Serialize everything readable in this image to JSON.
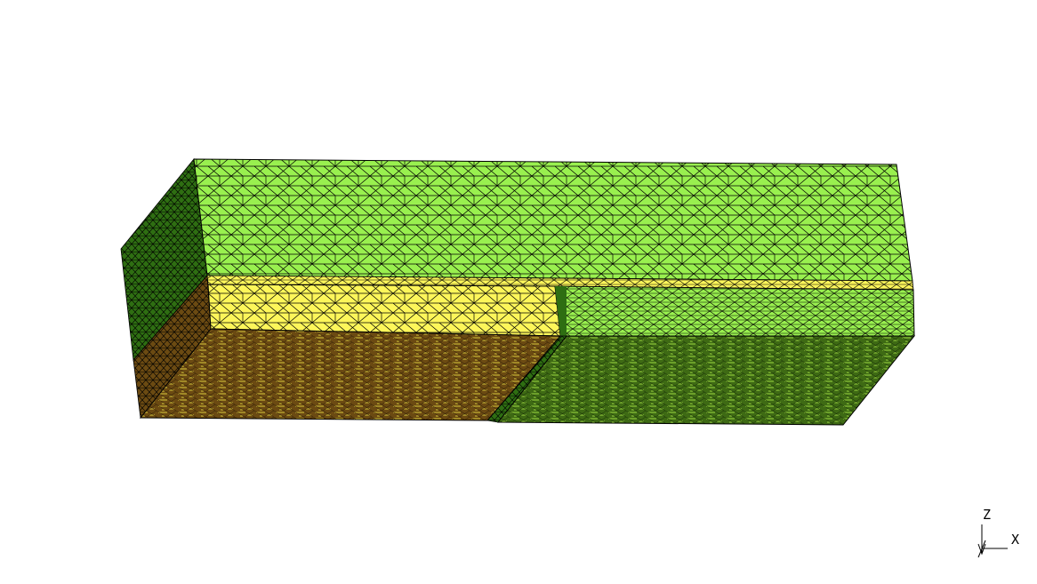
{
  "view": {
    "background": "#ffffff",
    "mesh_line_color": "#000000"
  },
  "materials": {
    "upper_layer": "#99f04f",
    "middle_layer": "#fdf65a",
    "side_face": "#2e6e12",
    "bottom_left": "#6b4a12",
    "bottom_right": "#3e6a14",
    "bottom_speckle_left": "#d6c63c",
    "bottom_speckle_right": "#9bd640"
  },
  "axes": {
    "z_label": "Z",
    "x_label": "X"
  }
}
